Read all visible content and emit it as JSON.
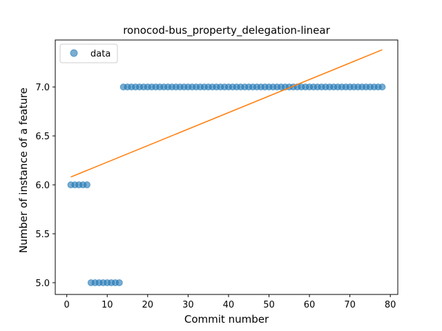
{
  "chart_data": {
    "type": "scatter",
    "title": "ronocod-bus_property_delegation-linear",
    "xlabel": "Commit number",
    "ylabel": "Number of instance of a feature",
    "xlim": [
      -2.85,
      81.85
    ],
    "ylim": [
      4.88,
      7.48
    ],
    "xticks": [
      0,
      10,
      20,
      30,
      40,
      50,
      60,
      70,
      80
    ],
    "yticks": [
      5.0,
      5.5,
      6.0,
      6.5,
      7.0
    ],
    "ytick_labels": [
      "5.0",
      "5.5",
      "6.0",
      "6.5",
      "7.0"
    ],
    "legend": {
      "position": "top-left",
      "entries": [
        "data"
      ]
    },
    "grid": false,
    "colors": {
      "data": "#1f77b4",
      "fit": "#ff7f0e"
    },
    "series": [
      {
        "name": "data",
        "kind": "scatter",
        "x": [
          1,
          2,
          3,
          4,
          5,
          6,
          7,
          8,
          9,
          10,
          11,
          12,
          13,
          14,
          15,
          16,
          17,
          18,
          19,
          20,
          21,
          22,
          23,
          24,
          25,
          26,
          27,
          28,
          29,
          30,
          31,
          32,
          33,
          34,
          35,
          36,
          37,
          38,
          39,
          40,
          41,
          42,
          43,
          44,
          45,
          46,
          47,
          48,
          49,
          50,
          51,
          52,
          53,
          54,
          55,
          56,
          57,
          58,
          59,
          60,
          61,
          62,
          63,
          64,
          65,
          66,
          67,
          68,
          69,
          70,
          71,
          72,
          73,
          74,
          75,
          76,
          77,
          78
        ],
        "y": [
          6,
          6,
          6,
          6,
          6,
          5,
          5,
          5,
          5,
          5,
          5,
          5,
          5,
          7,
          7,
          7,
          7,
          7,
          7,
          7,
          7,
          7,
          7,
          7,
          7,
          7,
          7,
          7,
          7,
          7,
          7,
          7,
          7,
          7,
          7,
          7,
          7,
          7,
          7,
          7,
          7,
          7,
          7,
          7,
          7,
          7,
          7,
          7,
          7,
          7,
          7,
          7,
          7,
          7,
          7,
          7,
          7,
          7,
          7,
          7,
          7,
          7,
          7,
          7,
          7,
          7,
          7,
          7,
          7,
          7,
          7,
          7,
          7,
          7,
          7,
          7,
          7,
          7
        ]
      },
      {
        "kind": "line",
        "x": [
          1,
          78
        ],
        "y": [
          6.08,
          7.38
        ]
      }
    ]
  }
}
